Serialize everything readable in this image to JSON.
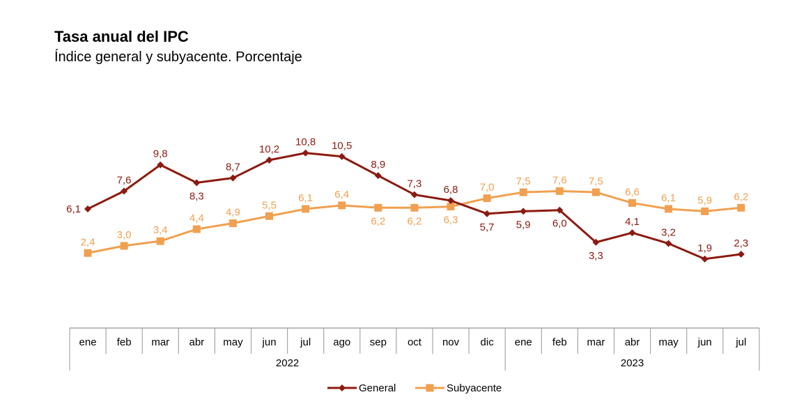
{
  "chart_data": {
    "type": "line",
    "title": "Tasa anual del IPC",
    "subtitle": "Índice general y subyacente. Porcentaje",
    "categories": [
      "ene",
      "feb",
      "mar",
      "abr",
      "may",
      "jun",
      "jul",
      "ago",
      "sep",
      "oct",
      "nov",
      "dic",
      "ene",
      "feb",
      "mar",
      "abr",
      "may",
      "jun",
      "jul"
    ],
    "groups": [
      {
        "label": "2022",
        "count": 12
      },
      {
        "label": "2023",
        "count": 7
      }
    ],
    "series": [
      {
        "name": "General",
        "color": "#8B1A10",
        "marker": "diamond",
        "values": [
          6.1,
          7.6,
          9.8,
          8.3,
          8.7,
          10.2,
          10.8,
          10.5,
          8.9,
          7.3,
          6.8,
          5.7,
          5.9,
          6.0,
          3.3,
          4.1,
          3.2,
          1.9,
          2.3
        ],
        "labels": [
          "6,1",
          "7,6",
          "9,8",
          "8,3",
          "8,7",
          "10,2",
          "10,8",
          "10,5",
          "8,9",
          "7,3",
          "6,8",
          "5,7",
          "5,9",
          "6,0",
          "3,3",
          "4,1",
          "3,2",
          "1,9",
          "2,3"
        ]
      },
      {
        "name": "Subyacente",
        "color": "#F0A050",
        "marker": "square",
        "values": [
          2.4,
          3.0,
          3.4,
          4.4,
          4.9,
          5.5,
          6.1,
          6.4,
          6.2,
          6.2,
          6.3,
          7.0,
          7.5,
          7.6,
          7.5,
          6.6,
          6.1,
          5.9,
          6.2
        ],
        "labels": [
          "2,4",
          "3,0",
          "3,4",
          "4,4",
          "4,9",
          "5,5",
          "6,1",
          "6,4",
          "6,2",
          "6,2",
          "6,3",
          "7,0",
          "7,5",
          "7,6",
          "7,5",
          "6,6",
          "6,1",
          "5,9",
          "6,2"
        ]
      }
    ],
    "legend_position": "bottom-center",
    "grid": false
  }
}
